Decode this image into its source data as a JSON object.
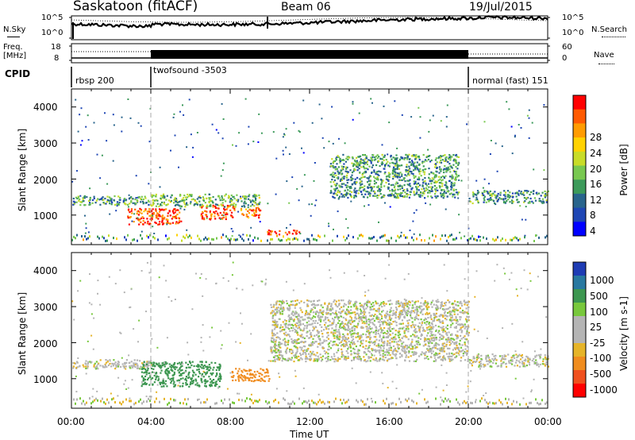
{
  "header": {
    "radar": "Saskatoon (fitACF)",
    "beam": "Beam 06",
    "date": "19/Jul/2015"
  },
  "noise_panel": {
    "left_label": "N.Sky",
    "right_label": "N.Search",
    "left_ticks": [
      "10^5",
      "10^0"
    ],
    "right_ticks": [
      "10^5",
      "10^0"
    ]
  },
  "freq_panel": {
    "left_label_1": "Freq.",
    "left_label_2": "[MHz]",
    "right_label": "Nave",
    "left_ticks": [
      "18",
      "8"
    ],
    "right_ticks": [
      "60",
      "0"
    ]
  },
  "cpid": {
    "label": "CPID",
    "segments": [
      {
        "name": "rbsp 200",
        "start_hr": 0,
        "end_hr": 4
      },
      {
        "name": "twofsound -3503",
        "start_hr": 4,
        "end_hr": 20
      },
      {
        "name": "normal (fast) 151",
        "start_hr": 20,
        "end_hr": 24
      }
    ]
  },
  "power_panel": {
    "ylabel": "Slant Range [km]",
    "yticks": [
      "4000",
      "3000",
      "2000",
      "1000"
    ],
    "cbar_label": "Power [dB]",
    "cbar_ticks": [
      "28",
      "24",
      "20",
      "16",
      "12",
      "8",
      "4"
    ],
    "cbar_colors": [
      "#ff0000",
      "#ff5a00",
      "#ff9b00",
      "#ffd200",
      "#c8dc28",
      "#78c850",
      "#3c9a5a",
      "#28648c",
      "#1e46b4",
      "#0000ff"
    ]
  },
  "velocity_panel": {
    "ylabel": "Slant Range [km]",
    "yticks": [
      "4000",
      "3000",
      "2000",
      "1000"
    ],
    "cbar_label": "Velocity [m s-1]",
    "cbar_ticks": [
      "1000",
      "500",
      "100",
      "25",
      "-25",
      "-100",
      "-500",
      "-1000"
    ],
    "cbar_colors": [
      "#1e3cb4",
      "#2878a0",
      "#3c9650",
      "#78c83c",
      "#b4b4b4",
      "#b4b4b4",
      "#e6b428",
      "#f08c1e",
      "#f0501e",
      "#ff0000"
    ]
  },
  "xaxis": {
    "ticks": [
      "00:00",
      "04:00",
      "08:00",
      "12:00",
      "16:00",
      "20:00",
      "00:00"
    ],
    "label": "Time UT"
  },
  "chart_data": {
    "type": "heatmap",
    "x_range_hr": [
      0,
      24
    ],
    "y_range_km": [
      180,
      4500
    ],
    "dashed_time_markers_hr": [
      4,
      20
    ],
    "power_regions": [
      {
        "t0": 0.0,
        "t1": 4.0,
        "r0": 1300,
        "r1": 1550,
        "dB": 12
      },
      {
        "t0": 2.8,
        "t1": 5.5,
        "r0": 750,
        "r1": 1200,
        "dB": 28
      },
      {
        "t0": 6.5,
        "t1": 8.2,
        "r0": 900,
        "r1": 1300,
        "dB": 28
      },
      {
        "t0": 8.5,
        "t1": 9.5,
        "r0": 950,
        "r1": 1250,
        "dB": 26
      },
      {
        "t0": 4.0,
        "t1": 9.5,
        "r0": 1250,
        "r1": 1600,
        "dB": 14
      },
      {
        "t0": 9.8,
        "t1": 11.5,
        "r0": 480,
        "r1": 600,
        "dB": 28
      },
      {
        "t0": 13.0,
        "t1": 19.5,
        "r0": 1500,
        "r1": 2700,
        "dB": 12
      },
      {
        "t0": 20.0,
        "t1": 24.0,
        "r0": 1350,
        "r1": 1700,
        "dB": 12
      }
    ],
    "velocity_regions": [
      {
        "t0": 0.0,
        "t1": 4.0,
        "r0": 1300,
        "r1": 1550,
        "v": 0
      },
      {
        "t0": 3.5,
        "t1": 7.5,
        "r0": 800,
        "r1": 1500,
        "v": 150
      },
      {
        "t0": 8.0,
        "t1": 10.0,
        "r0": 950,
        "r1": 1300,
        "v": -150
      },
      {
        "t0": 10.0,
        "t1": 20.0,
        "r0": 1500,
        "r1": 3200,
        "v": 0
      },
      {
        "t0": 20.0,
        "t1": 24.0,
        "r0": 1350,
        "r1": 1700,
        "v": 0
      }
    ]
  }
}
